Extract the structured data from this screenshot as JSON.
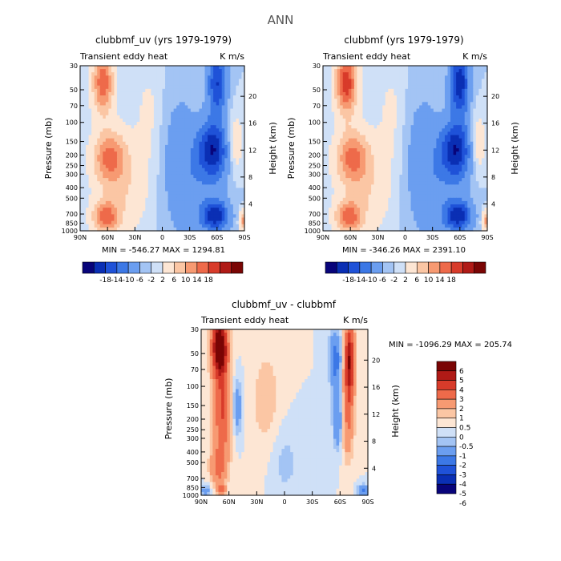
{
  "figure_title": "ANN",
  "palette_main": [
    "#08047a",
    "#0a2fb4",
    "#1f52d8",
    "#3c78e6",
    "#6b9ef0",
    "#a3c4f4",
    "#cfe0f7",
    "#fde6d4",
    "#fbc6a4",
    "#f79a72",
    "#ee6a4a",
    "#d83b2a",
    "#b01a16",
    "#7a0504"
  ],
  "palette_diff": [
    "#08047a",
    "#0a2fb4",
    "#1f52d8",
    "#3c78e6",
    "#6b9ef0",
    "#a3c4f4",
    "#cfe0f7",
    "#fde6d4",
    "#fbc6a4",
    "#f79a72",
    "#ee6a4a",
    "#d83b2a",
    "#b01a16",
    "#7a0504"
  ],
  "chart_data": [
    {
      "type": "heatmap",
      "title": "clubbmf_uv (yrs 1979-1979)",
      "left_title": "Transient eddy heat",
      "right_title": "K m/s",
      "x_ticks": [
        "90N",
        "60N",
        "30N",
        "0",
        "30S",
        "60S",
        "90S"
      ],
      "y_ticks": [
        "30",
        "50",
        "70",
        "100",
        "150",
        "200",
        "250",
        "300",
        "400",
        "500",
        "700",
        "850",
        "1000"
      ],
      "y2_ticks": [
        "4",
        "8",
        "12",
        "16",
        "20"
      ],
      "ylabel": "Pressure (mb)",
      "y2label": "Height (km)",
      "xlim": [
        90,
        -90
      ],
      "ylim_mb": [
        1000,
        30
      ],
      "stats_text": "MIN = -546.27   MAX = 1294.81",
      "colorbar_labels": [
        "-18",
        "-14",
        "-10",
        "-6",
        "-2",
        "2",
        "6",
        "10",
        "14",
        "18"
      ],
      "variant": "a"
    },
    {
      "type": "heatmap",
      "title": "clubbmf (yrs 1979-1979)",
      "left_title": "Transient eddy heat",
      "right_title": "K m/s",
      "x_ticks": [
        "90N",
        "60N",
        "30N",
        "0",
        "30S",
        "60S",
        "90S"
      ],
      "y_ticks": [
        "30",
        "50",
        "70",
        "100",
        "150",
        "200",
        "250",
        "300",
        "400",
        "500",
        "700",
        "850",
        "1000"
      ],
      "y2_ticks": [
        "4",
        "8",
        "12",
        "16",
        "20"
      ],
      "ylabel": "Pressure (mb)",
      "y2label": "Height (km)",
      "xlim": [
        90,
        -90
      ],
      "ylim_mb": [
        1000,
        30
      ],
      "stats_text": "MIN = -346.26   MAX = 2391.10",
      "colorbar_labels": [
        "-18",
        "-14",
        "-10",
        "-6",
        "-2",
        "2",
        "6",
        "10",
        "14",
        "18"
      ],
      "variant": "b"
    },
    {
      "type": "heatmap",
      "title": "clubbmf_uv - clubbmf",
      "left_title": "Transient eddy heat",
      "right_title": "K m/s",
      "x_ticks": [
        "90N",
        "60N",
        "30N",
        "0",
        "30S",
        "60S",
        "90S"
      ],
      "y_ticks": [
        "30",
        "50",
        "70",
        "100",
        "150",
        "200",
        "250",
        "300",
        "400",
        "500",
        "700",
        "850",
        "1000"
      ],
      "y2_ticks": [
        "4",
        "8",
        "12",
        "16",
        "20"
      ],
      "ylabel": "Pressure (mb)",
      "y2label": "Height (km)",
      "xlim": [
        90,
        -90
      ],
      "ylim_mb": [
        1000,
        30
      ],
      "stats_text": "MIN = -1096.29   MAX = 205.74",
      "colorbar_labels": [
        "6",
        "5",
        "4",
        "3",
        "2",
        "1",
        "0.5",
        "0",
        "-0.5",
        "-1",
        "-2",
        "-3",
        "-4",
        "-5",
        "-6"
      ],
      "variant": "diff"
    }
  ]
}
